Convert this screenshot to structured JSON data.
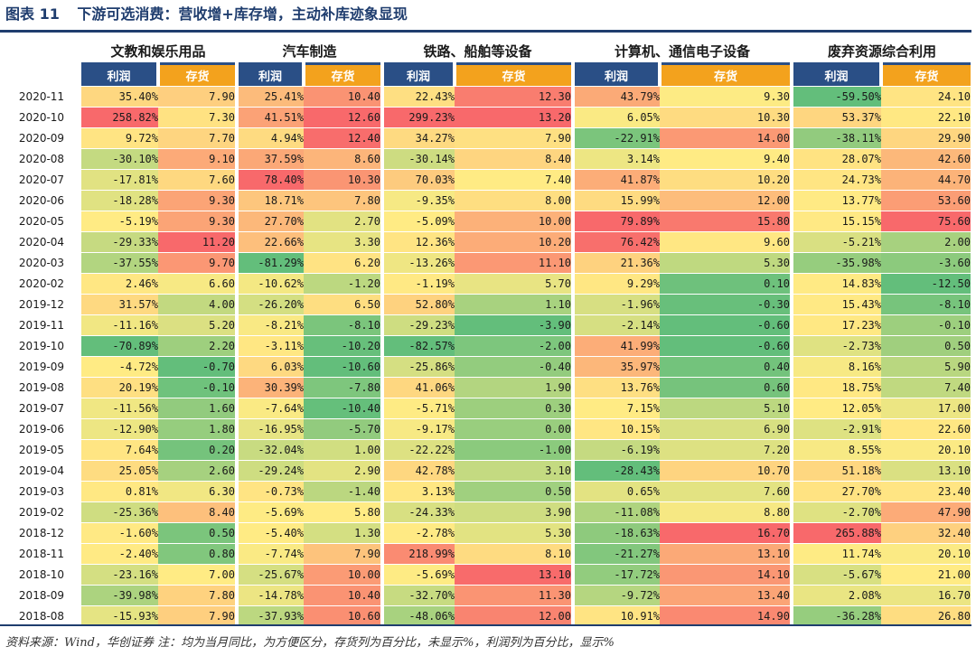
{
  "title": {
    "figure": "图表 11",
    "text": "下游可选消费：营收增+库存增，主动补库迹象显现"
  },
  "groups": [
    "文教和娱乐用品",
    "汽车制造",
    "铁路、船舶等设备",
    "计算机、通信电子设备",
    "废弃资源综合利用"
  ],
  "sub_headers": {
    "profit": "利润",
    "inventory": "存货"
  },
  "rows": [
    {
      "date": "2020-11",
      "cells": [
        [
          "35.40%",
          "7.90"
        ],
        [
          "25.41%",
          "10.40"
        ],
        [
          "22.43%",
          "12.30"
        ],
        [
          "43.79%",
          "9.30"
        ],
        [
          "-59.50%",
          "24.10"
        ]
      ]
    },
    {
      "date": "2020-10",
      "cells": [
        [
          "258.82%",
          "7.30"
        ],
        [
          "41.51%",
          "12.60"
        ],
        [
          "299.23%",
          "13.20"
        ],
        [
          "6.05%",
          "10.30"
        ],
        [
          "53.37%",
          "22.10"
        ]
      ]
    },
    {
      "date": "2020-09",
      "cells": [
        [
          "9.72%",
          "7.70"
        ],
        [
          "4.94%",
          "12.40"
        ],
        [
          "34.27%",
          "7.90"
        ],
        [
          "-22.91%",
          "14.00"
        ],
        [
          "-38.11%",
          "29.90"
        ]
      ]
    },
    {
      "date": "2020-08",
      "cells": [
        [
          "-30.10%",
          "9.10"
        ],
        [
          "37.59%",
          "8.60"
        ],
        [
          "-30.14%",
          "8.40"
        ],
        [
          "3.14%",
          "9.40"
        ],
        [
          "28.07%",
          "42.60"
        ]
      ]
    },
    {
      "date": "2020-07",
      "cells": [
        [
          "-17.81%",
          "7.60"
        ],
        [
          "78.40%",
          "10.30"
        ],
        [
          "70.03%",
          "7.40"
        ],
        [
          "41.87%",
          "10.20"
        ],
        [
          "24.73%",
          "44.70"
        ]
      ]
    },
    {
      "date": "2020-06",
      "cells": [
        [
          "-18.28%",
          "9.30"
        ],
        [
          "18.71%",
          "7.80"
        ],
        [
          "-9.35%",
          "8.00"
        ],
        [
          "15.99%",
          "12.00"
        ],
        [
          "13.77%",
          "53.60"
        ]
      ]
    },
    {
      "date": "2020-05",
      "cells": [
        [
          "-5.19%",
          "9.30"
        ],
        [
          "27.70%",
          "2.70"
        ],
        [
          "-5.09%",
          "10.00"
        ],
        [
          "79.89%",
          "15.80"
        ],
        [
          "15.15%",
          "75.60"
        ]
      ]
    },
    {
      "date": "2020-04",
      "cells": [
        [
          "-29.33%",
          "11.20"
        ],
        [
          "22.66%",
          "3.30"
        ],
        [
          "12.36%",
          "10.20"
        ],
        [
          "76.42%",
          "9.60"
        ],
        [
          "-5.21%",
          "2.00"
        ]
      ]
    },
    {
      "date": "2020-03",
      "cells": [
        [
          "-37.55%",
          "9.70"
        ],
        [
          "-81.29%",
          "6.20"
        ],
        [
          "-13.26%",
          "11.10"
        ],
        [
          "21.36%",
          "5.30"
        ],
        [
          "-35.98%",
          "-3.60"
        ]
      ]
    },
    {
      "date": "2020-02",
      "cells": [
        [
          "2.46%",
          "6.60"
        ],
        [
          "-10.62%",
          "-1.20"
        ],
        [
          "-1.19%",
          "5.70"
        ],
        [
          "9.29%",
          "0.10"
        ],
        [
          "14.83%",
          "-12.50"
        ]
      ]
    },
    {
      "date": "2019-12",
      "cells": [
        [
          "31.57%",
          "4.00"
        ],
        [
          "-26.20%",
          "6.50"
        ],
        [
          "52.80%",
          "1.10"
        ],
        [
          "-1.96%",
          "-0.30"
        ],
        [
          "15.43%",
          "-8.10"
        ]
      ]
    },
    {
      "date": "2019-11",
      "cells": [
        [
          "-11.16%",
          "5.20"
        ],
        [
          "-8.21%",
          "-8.10"
        ],
        [
          "-29.23%",
          "-3.90"
        ],
        [
          "-2.14%",
          "-0.60"
        ],
        [
          "17.23%",
          "-0.10"
        ]
      ]
    },
    {
      "date": "2019-10",
      "cells": [
        [
          "-70.89%",
          "2.20"
        ],
        [
          "-3.11%",
          "-10.20"
        ],
        [
          "-82.57%",
          "-2.00"
        ],
        [
          "41.99%",
          "-0.60"
        ],
        [
          "-2.73%",
          "0.50"
        ]
      ]
    },
    {
      "date": "2019-09",
      "cells": [
        [
          "-4.72%",
          "-0.70"
        ],
        [
          "6.03%",
          "-10.60"
        ],
        [
          "-25.86%",
          "-0.40"
        ],
        [
          "35.97%",
          "0.40"
        ],
        [
          "8.16%",
          "5.90"
        ]
      ]
    },
    {
      "date": "2019-08",
      "cells": [
        [
          "20.19%",
          "-0.10"
        ],
        [
          "30.39%",
          "-7.80"
        ],
        [
          "41.06%",
          "1.90"
        ],
        [
          "13.76%",
          "0.60"
        ],
        [
          "18.75%",
          "7.40"
        ]
      ]
    },
    {
      "date": "2019-07",
      "cells": [
        [
          "-11.56%",
          "1.60"
        ],
        [
          "-7.64%",
          "-10.40"
        ],
        [
          "-5.71%",
          "0.30"
        ],
        [
          "7.15%",
          "5.10"
        ],
        [
          "12.05%",
          "17.00"
        ]
      ]
    },
    {
      "date": "2019-06",
      "cells": [
        [
          "-12.90%",
          "1.80"
        ],
        [
          "-16.95%",
          "-5.70"
        ],
        [
          "-9.17%",
          "0.00"
        ],
        [
          "10.15%",
          "6.90"
        ],
        [
          "-2.91%",
          "22.60"
        ]
      ]
    },
    {
      "date": "2019-05",
      "cells": [
        [
          "7.64%",
          "0.20"
        ],
        [
          "-32.04%",
          "1.00"
        ],
        [
          "-22.22%",
          "-1.00"
        ],
        [
          "-6.19%",
          "7.20"
        ],
        [
          "8.55%",
          "20.10"
        ]
      ]
    },
    {
      "date": "2019-04",
      "cells": [
        [
          "25.05%",
          "2.60"
        ],
        [
          "-29.24%",
          "2.90"
        ],
        [
          "42.78%",
          "3.10"
        ],
        [
          "-28.43%",
          "10.70"
        ],
        [
          "51.18%",
          "13.10"
        ]
      ]
    },
    {
      "date": "2019-03",
      "cells": [
        [
          "0.81%",
          "6.30"
        ],
        [
          "-0.73%",
          "-1.40"
        ],
        [
          "3.13%",
          "0.50"
        ],
        [
          "0.65%",
          "7.60"
        ],
        [
          "27.70%",
          "23.40"
        ]
      ]
    },
    {
      "date": "2019-02",
      "cells": [
        [
          "-25.36%",
          "8.40"
        ],
        [
          "-5.69%",
          "5.80"
        ],
        [
          "-24.33%",
          "3.90"
        ],
        [
          "-11.08%",
          "8.80"
        ],
        [
          "-2.70%",
          "47.90"
        ]
      ]
    },
    {
      "date": "2018-12",
      "cells": [
        [
          "-1.60%",
          "0.50"
        ],
        [
          "-5.40%",
          "1.30"
        ],
        [
          "-2.78%",
          "5.30"
        ],
        [
          "-18.63%",
          "16.70"
        ],
        [
          "265.88%",
          "32.40"
        ]
      ]
    },
    {
      "date": "2018-11",
      "cells": [
        [
          "-2.40%",
          "0.80"
        ],
        [
          "-7.74%",
          "7.90"
        ],
        [
          "218.99%",
          "8.10"
        ],
        [
          "-21.27%",
          "13.10"
        ],
        [
          "11.74%",
          "20.10"
        ]
      ]
    },
    {
      "date": "2018-10",
      "cells": [
        [
          "-23.16%",
          "7.00"
        ],
        [
          "-25.67%",
          "10.00"
        ],
        [
          "-5.69%",
          "13.10"
        ],
        [
          "-17.72%",
          "14.10"
        ],
        [
          "-5.67%",
          "21.00"
        ]
      ]
    },
    {
      "date": "2018-09",
      "cells": [
        [
          "-39.98%",
          "7.80"
        ],
        [
          "-14.78%",
          "10.40"
        ],
        [
          "-32.70%",
          "11.30"
        ],
        [
          "-9.72%",
          "13.40"
        ],
        [
          "2.08%",
          "16.70"
        ]
      ]
    },
    {
      "date": "2018-08",
      "cells": [
        [
          "-15.93%",
          "7.90"
        ],
        [
          "-37.93%",
          "10.60"
        ],
        [
          "-48.06%",
          "12.00"
        ],
        [
          "10.91%",
          "14.90"
        ],
        [
          "-36.28%",
          "26.80"
        ]
      ]
    }
  ],
  "footer": "资料来源：Wind，华创证券  注：均为当月同比，为方便区分，存货列为百分比，未显示%，利润列为百分比，显示%"
}
